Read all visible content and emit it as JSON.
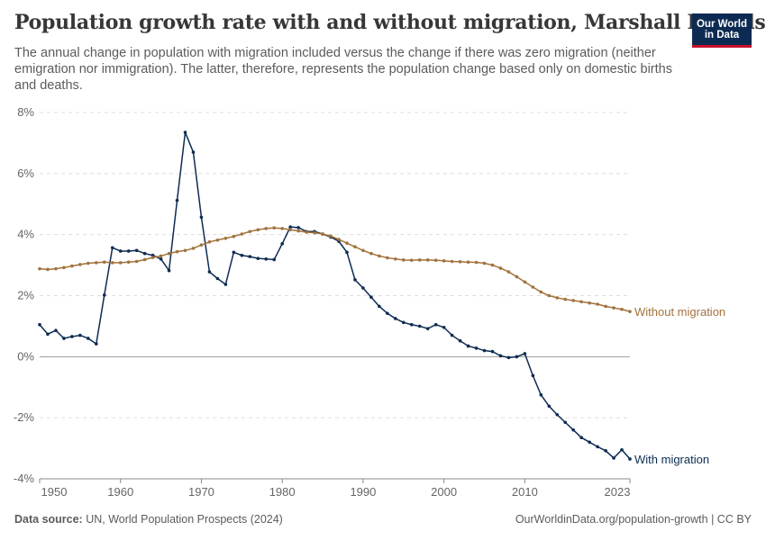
{
  "header": {
    "title": "Population growth rate with and without migration, Marshall Islands",
    "subtitle": "The annual change in population with migration included versus the change if there was zero migration (neither emigration nor immigration). The latter, therefore, represents the population change based only on domestic births and deaths.",
    "logo_line1": "Our World",
    "logo_line2": "in Data"
  },
  "footer": {
    "source_label": "Data source:",
    "source_text": "UN, World Population Prospects (2024)",
    "url": "OurWorldinData.org/population-growth | CC BY"
  },
  "colors": {
    "with_migration": "#0d2b52",
    "without_migration": "#a2723c",
    "logo_bg": "#0d2b52",
    "logo_accent": "#c8102e"
  },
  "chart_data": {
    "type": "line",
    "x_start": 1950,
    "ylim": [
      -4,
      8
    ],
    "xlim": [
      1950,
      2023
    ],
    "y_ticks": [
      -4,
      -2,
      0,
      2,
      4,
      6,
      8
    ],
    "y_tick_labels": [
      "-4%",
      "-2%",
      "0%",
      "2%",
      "4%",
      "6%",
      "8%"
    ],
    "x_ticks": [
      1950,
      1960,
      1970,
      1980,
      1990,
      2000,
      2010,
      2023
    ],
    "x_tick_labels": [
      "1950",
      "1960",
      "1970",
      "1980",
      "1990",
      "2000",
      "2010",
      "2023"
    ],
    "grid": true,
    "series": [
      {
        "name": "With migration",
        "values": [
          1.05,
          0.74,
          0.86,
          0.6,
          0.66,
          0.7,
          0.6,
          0.42,
          2.02,
          3.57,
          3.46,
          3.46,
          3.48,
          3.38,
          3.32,
          3.2,
          2.82,
          5.12,
          7.35,
          6.7,
          4.57,
          2.78,
          2.56,
          2.37,
          3.42,
          3.32,
          3.28,
          3.22,
          3.2,
          3.18,
          3.7,
          4.25,
          4.23,
          4.1,
          4.1,
          4.02,
          3.92,
          3.78,
          3.42,
          2.52,
          2.25,
          1.95,
          1.65,
          1.42,
          1.25,
          1.12,
          1.05,
          1.0,
          0.92,
          1.05,
          0.96,
          0.7,
          0.52,
          0.35,
          0.28,
          0.2,
          0.17,
          0.03,
          -0.03,
          0.0,
          0.1,
          -0.62,
          -1.25,
          -1.62,
          -1.9,
          -2.15,
          -2.4,
          -2.65,
          -2.8,
          -2.95,
          -3.08,
          -3.32,
          -3.05,
          -3.35
        ]
      },
      {
        "name": "Without migration",
        "values": [
          2.88,
          2.86,
          2.88,
          2.92,
          2.97,
          3.02,
          3.06,
          3.08,
          3.1,
          3.08,
          3.08,
          3.1,
          3.12,
          3.18,
          3.25,
          3.3,
          3.38,
          3.44,
          3.48,
          3.55,
          3.66,
          3.76,
          3.82,
          3.88,
          3.94,
          4.02,
          4.1,
          4.16,
          4.2,
          4.22,
          4.2,
          4.16,
          4.12,
          4.08,
          4.06,
          4.02,
          3.95,
          3.84,
          3.72,
          3.6,
          3.48,
          3.38,
          3.3,
          3.24,
          3.2,
          3.17,
          3.16,
          3.17,
          3.17,
          3.16,
          3.14,
          3.12,
          3.11,
          3.1,
          3.09,
          3.06,
          3.0,
          2.9,
          2.78,
          2.62,
          2.45,
          2.28,
          2.12,
          2.0,
          1.93,
          1.88,
          1.84,
          1.8,
          1.76,
          1.72,
          1.65,
          1.6,
          1.55,
          1.48
        ]
      }
    ]
  }
}
